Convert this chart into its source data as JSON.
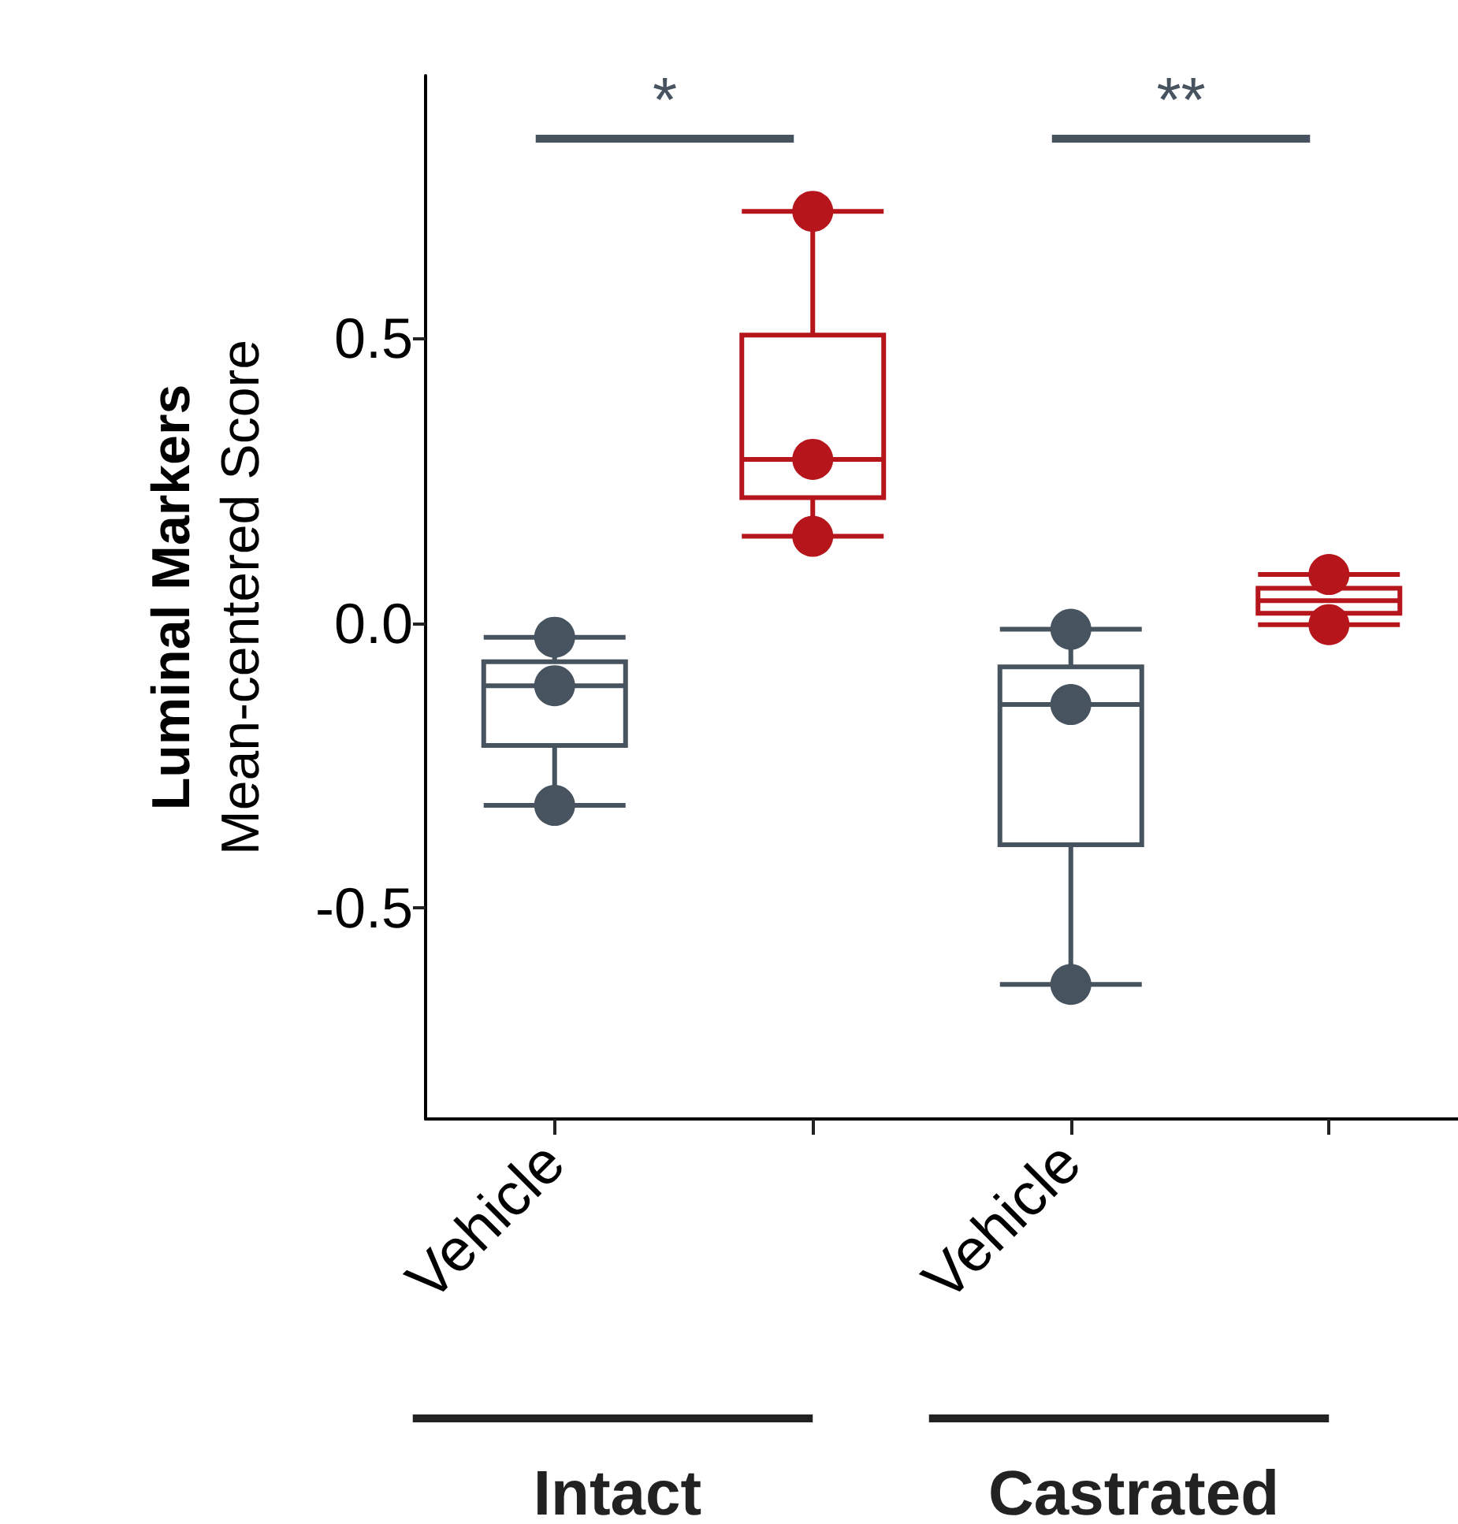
{
  "chart_data": {
    "type": "box",
    "ylabel": "Luminal Markers\nMean-centered Score",
    "categories": [
      "Vehicle",
      null,
      "Vehicle",
      null
    ],
    "boxes": [
      {
        "low": -0.32,
        "q1": -0.215,
        "median": -0.11,
        "q3": -0.068,
        "high": -0.025
      },
      {
        "low": 0.152,
        "q1": 0.22,
        "median": 0.287,
        "q3": 0.505,
        "high": 0.722
      },
      {
        "low": -0.634,
        "q1": -0.389,
        "median": -0.143,
        "q3": -0.077,
        "high": -0.011
      },
      {
        "low": -0.003,
        "q1": 0.017,
        "median": 0.039,
        "q3": 0.061,
        "high": 0.085
      }
    ],
    "colors": [
      "#47535e",
      "#b5151b",
      "#47535e",
      "#b5151b"
    ],
    "series": [
      {
        "type": "scatter",
        "values": [
          -0.025,
          0.722,
          -0.011,
          0.085
        ],
        "colors": [
          "#47535e",
          "#b5151b",
          "#47535e",
          "#b5151b"
        ]
      },
      {
        "type": "scatter",
        "values": [
          -0.11,
          0.287,
          -0.143,
          -0.003
        ],
        "colors": [
          "#47535e",
          "#b5151b",
          "#47535e",
          "#b5151b"
        ]
      },
      {
        "type": "scatter",
        "values": [
          -0.32,
          0.152,
          -0.634,
          null
        ],
        "colors": [
          "#47535e",
          "#b5151b",
          "#47535e",
          null
        ]
      }
    ],
    "marker": "circle",
    "ylim": [
      -0.87,
      0.96
    ],
    "yticks": [
      0.5,
      {
        "value": 0,
        "label": "0.0"
      },
      -0.5
    ],
    "grid": false,
    "annotations": [
      "*",
      "**",
      "Intact",
      "Castrated"
    ]
  }
}
